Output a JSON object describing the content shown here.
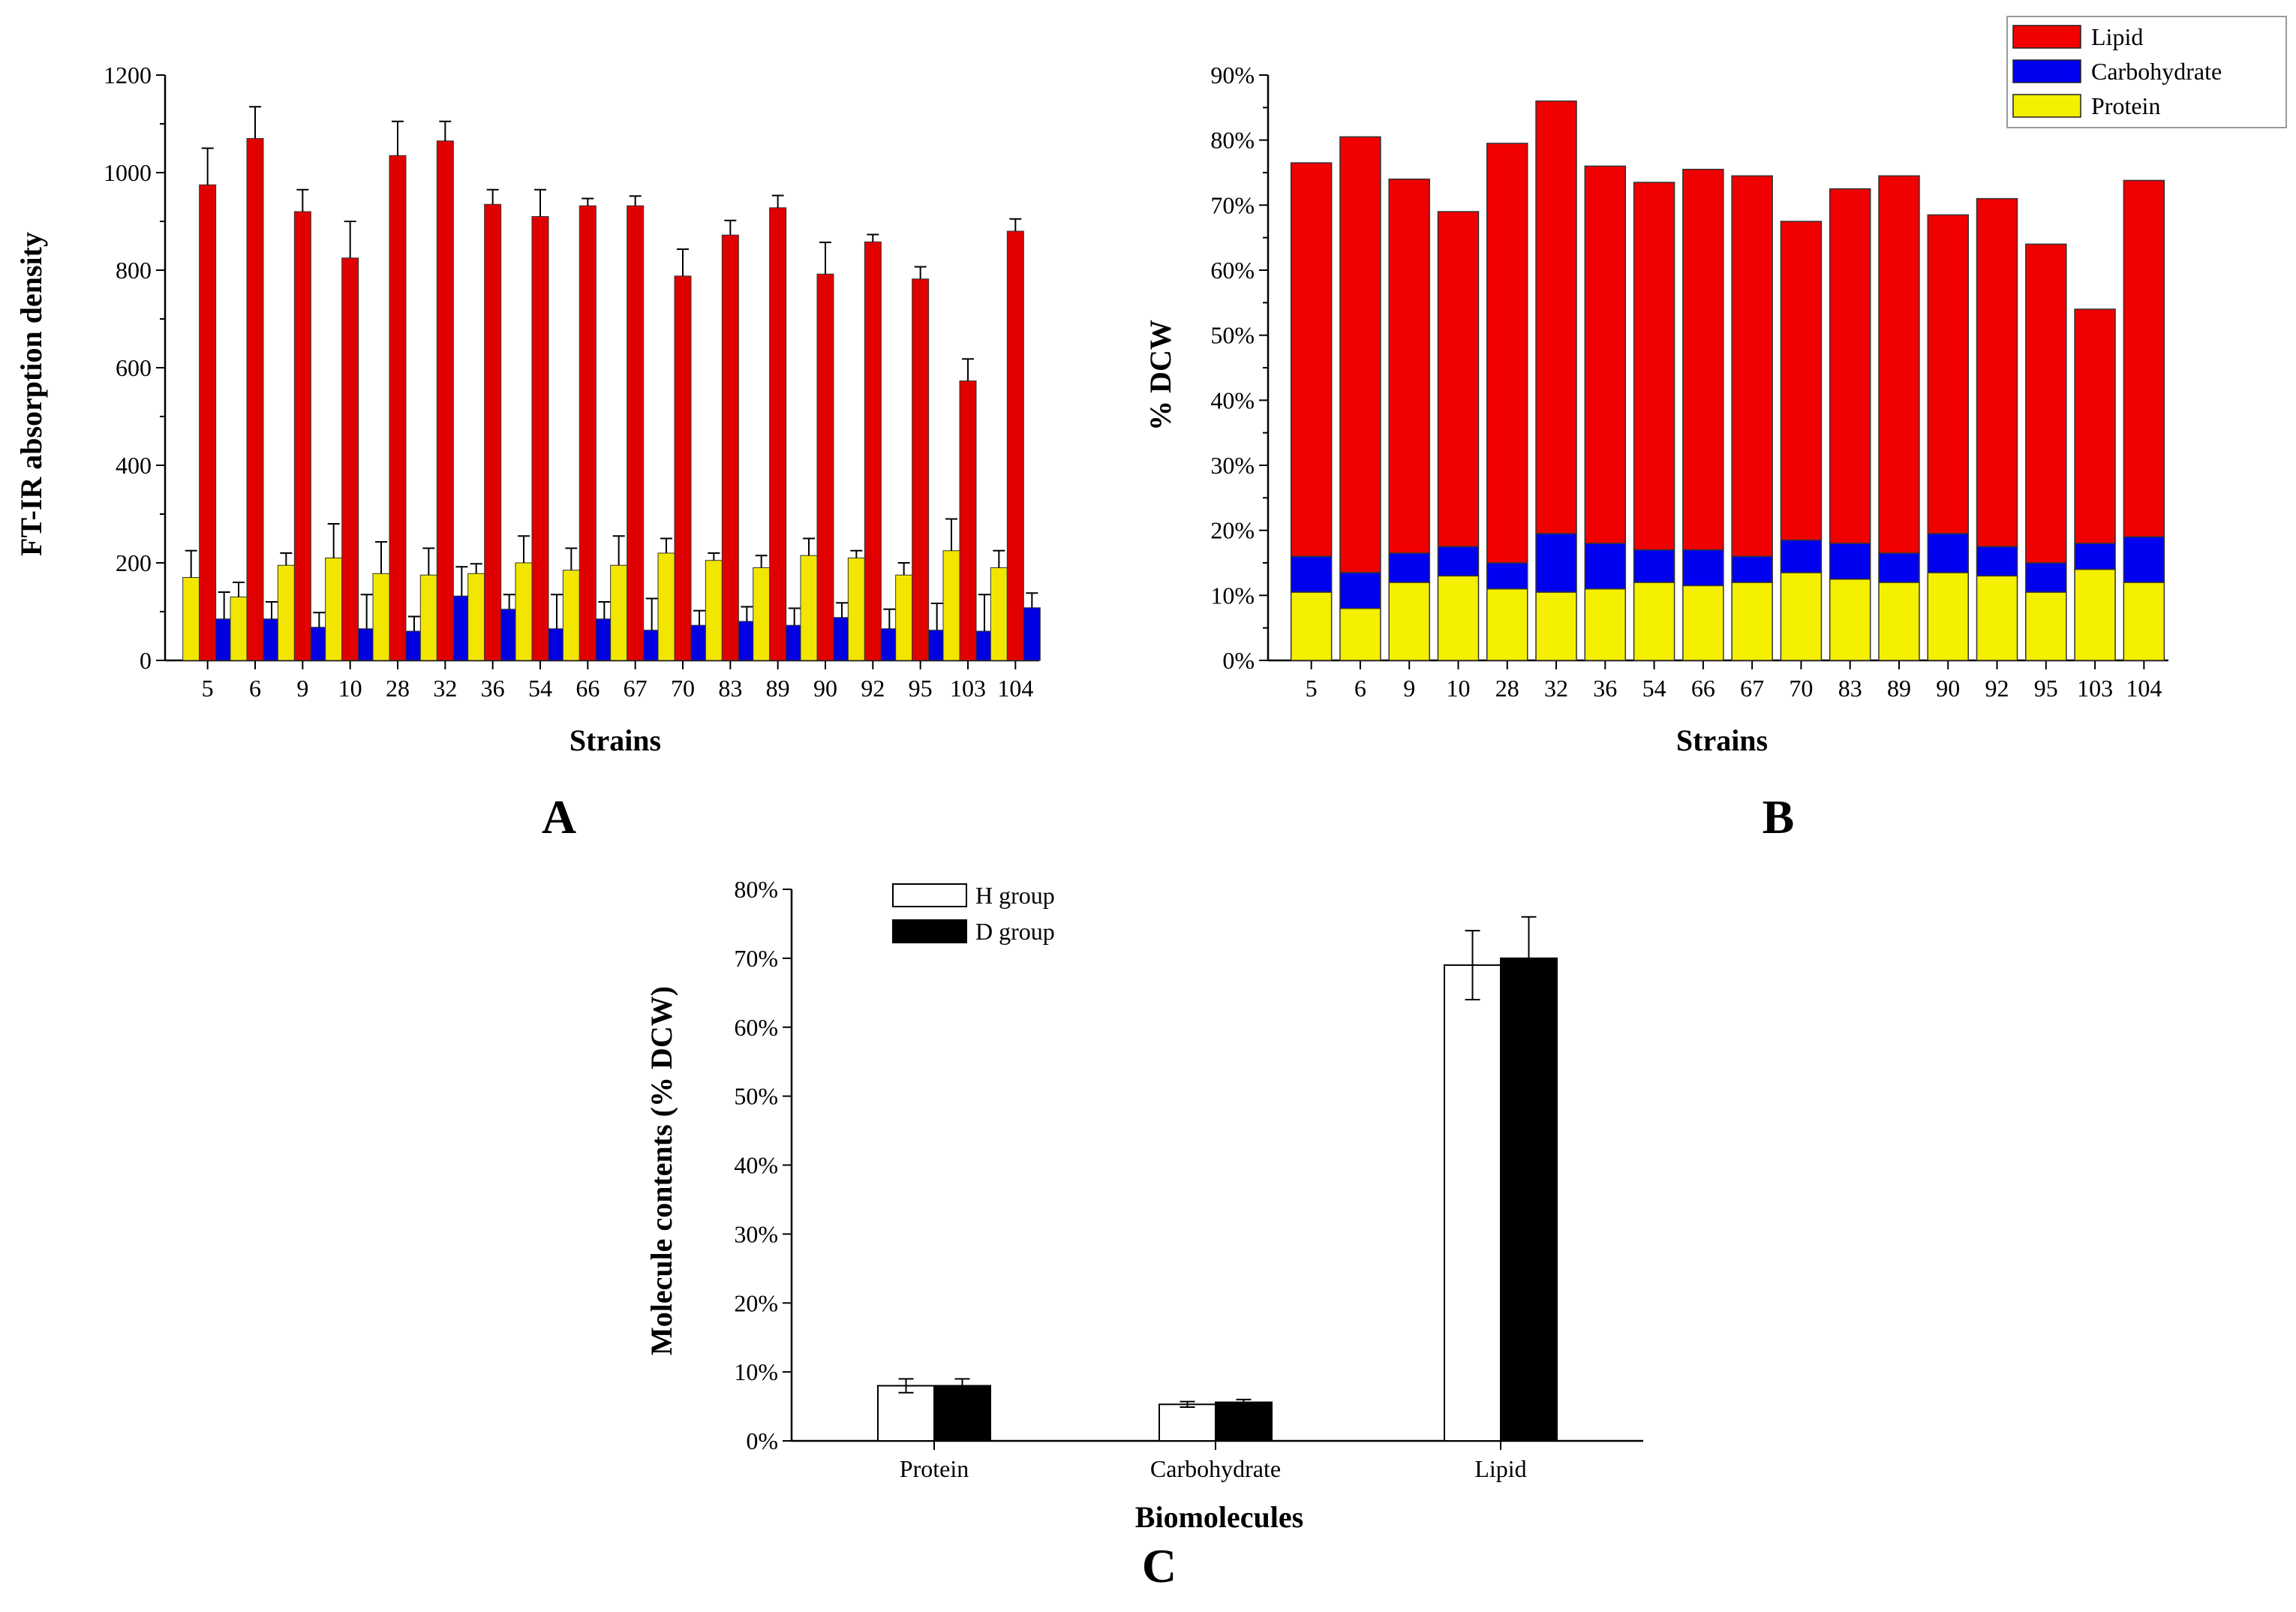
{
  "chart_data": [
    {
      "id": "A",
      "type": "bar",
      "panel_label": "A",
      "xlabel": "Strains",
      "ylabel": "FT-IR absorption density",
      "ylim": [
        0,
        1200
      ],
      "yticks": [
        "0",
        "200",
        "400",
        "600",
        "800",
        "1000",
        "1200"
      ],
      "categories": [
        "5",
        "6",
        "9",
        "10",
        "28",
        "32",
        "36",
        "54",
        "66",
        "67",
        "70",
        "83",
        "89",
        "90",
        "92",
        "95",
        "103",
        "104"
      ],
      "series": [
        {
          "name": "Protein",
          "color": "#f2e600",
          "values": [
            170,
            130,
            195,
            210,
            178,
            175,
            178,
            200,
            185,
            195,
            220,
            205,
            190,
            215,
            210,
            175,
            225,
            190
          ],
          "errors": [
            55,
            30,
            25,
            70,
            65,
            55,
            20,
            55,
            45,
            60,
            30,
            15,
            25,
            35,
            15,
            25,
            65,
            35
          ]
        },
        {
          "name": "Lipid",
          "color": "#e00000",
          "values": [
            975,
            1070,
            920,
            825,
            1035,
            1065,
            935,
            910,
            932,
            932,
            788,
            872,
            928,
            792,
            858,
            782,
            573,
            880
          ],
          "errors": [
            75,
            65,
            45,
            75,
            70,
            40,
            30,
            55,
            15,
            20,
            55,
            30,
            25,
            65,
            15,
            25,
            45,
            25
          ]
        },
        {
          "name": "Carbohydrate",
          "color": "#0000e0",
          "values": [
            85,
            85,
            68,
            65,
            60,
            132,
            105,
            65,
            85,
            62,
            72,
            80,
            72,
            88,
            65,
            62,
            60,
            108
          ],
          "errors": [
            55,
            35,
            30,
            70,
            30,
            60,
            30,
            70,
            35,
            65,
            30,
            30,
            35,
            30,
            40,
            55,
            75,
            30
          ]
        }
      ]
    },
    {
      "id": "B",
      "type": "bar",
      "stacked": true,
      "panel_label": "B",
      "xlabel": "Strains",
      "ylabel": "% DCW",
      "ylim": [
        0,
        90
      ],
      "yticks": [
        "0%",
        "10%",
        "20%",
        "30%",
        "40%",
        "50%",
        "60%",
        "70%",
        "80%",
        "90%"
      ],
      "categories": [
        "5",
        "6",
        "9",
        "10",
        "28",
        "32",
        "36",
        "54",
        "66",
        "67",
        "70",
        "83",
        "89",
        "90",
        "92",
        "95",
        "103",
        "104"
      ],
      "series": [
        {
          "name": "Protein",
          "color": "#f5ef00",
          "values": [
            10.5,
            8,
            12,
            13,
            11,
            10.5,
            11,
            12,
            11.5,
            12,
            13.5,
            12.5,
            12,
            13.5,
            13,
            10.5,
            14,
            12
          ]
        },
        {
          "name": "Carbohydrate",
          "color": "#0000f0",
          "values": [
            5.5,
            5.5,
            4.5,
            4.5,
            4,
            9,
            7,
            5,
            5.5,
            4,
            5,
            5.5,
            4.5,
            6,
            4.5,
            4.5,
            4,
            7
          ]
        },
        {
          "name": "Lipid",
          "color": "#f00000",
          "values": [
            60.5,
            67,
            57.5,
            51.5,
            64.5,
            66.5,
            58,
            56.5,
            58.5,
            58.5,
            49,
            54.5,
            58,
            49,
            53.5,
            49,
            36,
            54.8
          ]
        }
      ],
      "legend": {
        "position": "top-right",
        "items": [
          "Lipid",
          "Carbohydrate",
          "Protein"
        ]
      }
    },
    {
      "id": "C",
      "type": "bar",
      "panel_label": "C",
      "xlabel": "Biomolecules",
      "ylabel": "Molecule contents (% DCW)",
      "ylim": [
        0,
        80
      ],
      "yticks": [
        "0%",
        "10%",
        "20%",
        "30%",
        "40%",
        "50%",
        "60%",
        "70%",
        "80%"
      ],
      "categories": [
        "Protein",
        "Carbohydrate",
        "Lipid"
      ],
      "series": [
        {
          "name": "H group",
          "color": "#ffffff",
          "values": [
            8,
            5.3,
            69
          ],
          "errors": [
            1,
            0.4,
            5
          ]
        },
        {
          "name": "D group",
          "color": "#000000",
          "values": [
            8,
            5.6,
            70
          ],
          "errors": [
            1,
            0.4,
            6
          ]
        }
      ],
      "legend": {
        "position": "top-left",
        "items": [
          "H group",
          "D group"
        ]
      }
    }
  ]
}
